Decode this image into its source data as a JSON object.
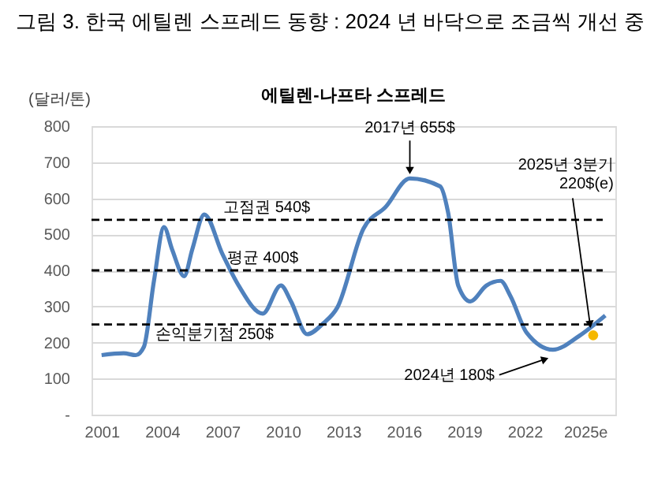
{
  "chart_data": {
    "type": "line",
    "title": "그림 3. 한국 에틸렌 스프레드 동향 : 2024 년 바닥으로 조금씩 개선 중",
    "subtitle": "에틸렌-나프타 스프레드",
    "ylabel": "(달러/톤)",
    "series": [
      {
        "color": "#4f81bd",
        "x": [
          2001,
          2002.1,
          2002.7,
          2003.1,
          2003.6,
          2004.1,
          2004.5,
          2005.1,
          2005.5,
          2006.1,
          2007.0,
          2007.8,
          2009.0,
          2009.9,
          2010.4,
          2011.2,
          2012.0,
          2012.7,
          2014.0,
          2015.1,
          2016.3,
          2017.8,
          2018.2,
          2018.7,
          2019.3,
          2020.1,
          2020.8,
          2021.3,
          2022.1,
          2023.4,
          2024.7,
          2026.0
        ],
        "values": [
          165,
          170,
          165,
          188,
          371,
          520,
          458,
          384,
          458,
          555,
          445,
          358,
          280,
          358,
          314,
          223,
          253,
          297,
          516,
          576,
          655,
          633,
          560,
          358,
          314,
          358,
          371,
          328,
          227,
          180,
          218,
          275
        ]
      },
      {
        "type": "scatter",
        "marker": "circle",
        "color": "#f5b800",
        "x": [
          2025.4
        ],
        "values": [
          220
        ]
      }
    ],
    "xlim": [
      2000.5,
      2026.5
    ],
    "xticks": [
      2001,
      2004,
      2007,
      2010,
      2013,
      2016,
      2019,
      2022,
      {
        "value": 2025,
        "label": "2025e"
      }
    ],
    "ylim": [
      0,
      800
    ],
    "yticks": [
      {
        "value": 0,
        "label": "-"
      },
      100,
      200,
      300,
      400,
      500,
      600,
      700,
      800
    ],
    "grid": "y",
    "marker": "none",
    "line_style": "solid",
    "ref_lines": [
      {
        "axis": "y",
        "value": 540,
        "label": "고점권 540$",
        "color": "#000000",
        "line_style": "dashed"
      },
      {
        "axis": "y",
        "value": 400,
        "label": "평균 400$",
        "color": "#000000",
        "line_style": "dashed"
      },
      {
        "axis": "y",
        "value": 250,
        "label": "손익분기점 250$",
        "color": "#000000",
        "line_style": "dashed"
      }
    ],
    "annotations": [
      {
        "text": "2017년 655$",
        "x": 2016.3,
        "y": 655
      },
      {
        "text": "2024년 180$",
        "x": 2023.4,
        "y": 180
      },
      {
        "text": "2025년 3분기\n220$(e)",
        "x": 2025.4,
        "y": 220
      }
    ]
  }
}
